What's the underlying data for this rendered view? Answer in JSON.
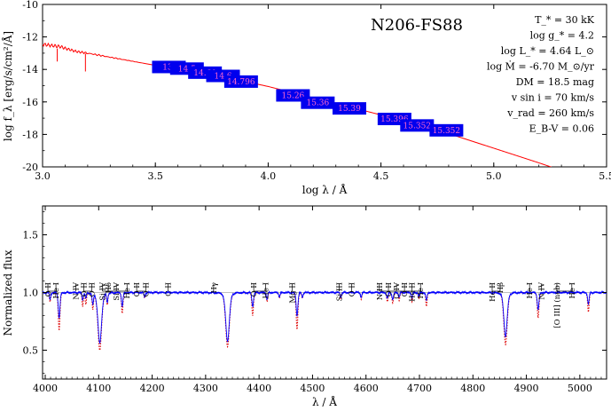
{
  "chart_data": [
    {
      "type": "line",
      "title": "N206-FS88",
      "xlabel": "log λ / Å",
      "ylabel": "log f_λ [erg/s/cm²/Å]",
      "xlim": [
        3.0,
        5.5
      ],
      "ylim": [
        -20,
        -10
      ],
      "xticks": [
        3.0,
        3.5,
        4.0,
        4.5,
        5.0,
        5.5
      ],
      "xtick_labels": [
        "3.0",
        "3.5",
        "4.0",
        "4.5",
        "5.0",
        "5.5"
      ],
      "yticks": [
        -20,
        -18,
        -16,
        -14,
        -12,
        -10
      ],
      "ytick_labels": [
        "-20",
        "-18",
        "-16",
        "-14",
        "-12",
        "-10"
      ],
      "grid": false,
      "colors": {
        "model": "#ff0000",
        "photometry_box": "#0000ee",
        "photometry_label": "#ff66cc"
      },
      "model_sed": {
        "name": "",
        "x": [
          3.0,
          3.05,
          3.08,
          3.1,
          3.15,
          3.2,
          3.3,
          3.4,
          3.5,
          3.6,
          3.7,
          3.8,
          3.9,
          4.0,
          4.1,
          4.2,
          4.3,
          4.4,
          4.5,
          4.6,
          4.7,
          4.8,
          4.9,
          5.0,
          5.1,
          5.2,
          5.4,
          5.5
        ],
        "y": [
          -12.45,
          -12.55,
          -12.6,
          -12.7,
          -12.9,
          -13.0,
          -13.25,
          -13.5,
          -13.75,
          -14.0,
          -14.25,
          -14.5,
          -14.75,
          -15.05,
          -15.4,
          -15.75,
          -16.1,
          -16.45,
          -16.8,
          -17.15,
          -17.55,
          -17.95,
          -18.4,
          -18.85,
          -19.3,
          -19.75,
          -20.7,
          -21.2
        ]
      },
      "photometry": [
        {
          "label": "13.",
          "x": 3.56,
          "y": -13.85
        },
        {
          "label": "14.5",
          "x": 3.64,
          "y": -13.95
        },
        {
          "label": "14.60",
          "x": 3.72,
          "y": -14.2
        },
        {
          "label": "14.6",
          "x": 3.8,
          "y": -14.4
        },
        {
          "label": "14.796",
          "x": 3.88,
          "y": -14.75
        },
        {
          "label": "15.26",
          "x": 4.11,
          "y": -15.6
        },
        {
          "label": "15.36",
          "x": 4.22,
          "y": -16.05
        },
        {
          "label": "15.39",
          "x": 4.36,
          "y": -16.4
        },
        {
          "label": "15.396",
          "x": 4.56,
          "y": -17.05
        },
        {
          "label": "15.352",
          "x": 4.66,
          "y": -17.45
        },
        {
          "label": "15.352",
          "x": 4.79,
          "y": -17.75
        }
      ],
      "parameters": [
        {
          "label": "T_* = 30 kK"
        },
        {
          "label": "log g_* = 4.2"
        },
        {
          "label": "log L_* = 4.64 L_⊙"
        },
        {
          "label": "log Ṁ = -6.70 M_⊙/yr"
        },
        {
          "label": "DM = 18.5 mag"
        },
        {
          "label": "v sin i = 70 km/s"
        },
        {
          "label": "v_rad = 260 km/s"
        },
        {
          "label": "E_B-V = 0.06"
        }
      ]
    },
    {
      "type": "line",
      "xlabel": "λ / Å",
      "ylabel": "Normalized flux",
      "xlim": [
        3995,
        5050
      ],
      "ylim": [
        0.25,
        1.75
      ],
      "xticks": [
        4000,
        4100,
        4200,
        4300,
        4400,
        4500,
        4600,
        4700,
        4800,
        4900,
        5000
      ],
      "xtick_labels": [
        "4000",
        "4100",
        "4200",
        "4300",
        "4400",
        "4500",
        "4600",
        "4700",
        "4800",
        "4900",
        "5000"
      ],
      "yticks": [
        0.5,
        1.0,
        1.5
      ],
      "ytick_labels": [
        "0.5",
        "1.0",
        "1.5"
      ],
      "reference_line": 1.0,
      "colors": {
        "observed": "#0000ff",
        "model": "#dd0000",
        "reference": "#aaaaaa"
      },
      "lines": [
        {
          "name": "",
          "center": 4009,
          "obs_depth": 0.06,
          "model_depth": 0.08,
          "width": 1.2
        },
        {
          "name": "",
          "center": 4026,
          "obs_depth": 0.22,
          "model_depth": 0.33,
          "width": 1.6
        },
        {
          "name": "",
          "center": 4070,
          "obs_depth": 0.06,
          "model_depth": 0.12,
          "width": 1.2
        },
        {
          "name": "",
          "center": 4076,
          "obs_depth": 0.05,
          "model_depth": 0.1,
          "width": 1.2
        },
        {
          "name": "",
          "center": 4089,
          "obs_depth": 0.1,
          "model_depth": 0.14,
          "width": 1.3
        },
        {
          "name": "",
          "center": 4102,
          "obs_depth": 0.44,
          "model_depth": 0.5,
          "width": 3.5
        },
        {
          "name": "",
          "center": 4116,
          "obs_depth": 0.08,
          "model_depth": 0.1,
          "width": 1.2
        },
        {
          "name": "",
          "center": 4144,
          "obs_depth": 0.12,
          "model_depth": 0.18,
          "width": 1.4
        },
        {
          "name": "",
          "center": 4186,
          "obs_depth": 0.04,
          "model_depth": 0.05,
          "width": 1.2
        },
        {
          "name": "",
          "center": 4341,
          "obs_depth": 0.42,
          "model_depth": 0.47,
          "width": 3.5
        },
        {
          "name": "",
          "center": 4388,
          "obs_depth": 0.12,
          "model_depth": 0.2,
          "width": 1.5
        },
        {
          "name": "",
          "center": 4415,
          "obs_depth": 0.06,
          "model_depth": 0.08,
          "width": 1.2
        },
        {
          "name": "",
          "center": 4438,
          "obs_depth": 0.04,
          "model_depth": 0.05,
          "width": 1.2
        },
        {
          "name": "",
          "center": 4471,
          "obs_depth": 0.2,
          "model_depth": 0.32,
          "width": 1.6
        },
        {
          "name": "",
          "center": 4481,
          "obs_depth": 0.04,
          "model_depth": 0.05,
          "width": 1.2
        },
        {
          "name": "",
          "center": 4553,
          "obs_depth": 0.04,
          "model_depth": 0.06,
          "width": 1.2
        },
        {
          "name": "",
          "center": 4591,
          "obs_depth": 0.04,
          "model_depth": 0.06,
          "width": 1.2
        },
        {
          "name": "",
          "center": 4640,
          "obs_depth": 0.05,
          "model_depth": 0.08,
          "width": 1.4
        },
        {
          "name": "",
          "center": 4650,
          "obs_depth": 0.06,
          "model_depth": 0.09,
          "width": 1.4
        },
        {
          "name": "",
          "center": 4662,
          "obs_depth": 0.04,
          "model_depth": 0.07,
          "width": 1.2
        },
        {
          "name": "",
          "center": 4686,
          "obs_depth": 0.05,
          "model_depth": 0.08,
          "width": 1.2
        },
        {
          "name": "",
          "center": 4699,
          "obs_depth": 0.03,
          "model_depth": 0.05,
          "width": 1.2
        },
        {
          "name": "",
          "center": 4713,
          "obs_depth": 0.07,
          "model_depth": 0.12,
          "width": 1.3
        },
        {
          "name": "",
          "center": 4861,
          "obs_depth": 0.38,
          "model_depth": 0.45,
          "width": 3.2
        },
        {
          "name": "",
          "center": 4922,
          "obs_depth": 0.15,
          "model_depth": 0.22,
          "width": 1.6
        },
        {
          "name": "",
          "center": 5016,
          "obs_depth": 0.1,
          "model_depth": 0.17,
          "width": 1.4
        }
      ],
      "line_ids": [
        {
          "label": "O II",
          "x": 4005
        },
        {
          "label": "He I",
          "x": 4020
        },
        {
          "label": "N IV",
          "x": 4057
        },
        {
          "label": "O II",
          "x": 4072
        },
        {
          "label": "O II",
          "x": 4087
        },
        {
          "label": "Si IV",
          "x": 4107
        },
        {
          "label": "Hδ",
          "x": 4118
        },
        {
          "label": "Si IV",
          "x": 4133
        },
        {
          "label": "He I",
          "x": 4153
        },
        {
          "label": "O II",
          "x": 4171
        },
        {
          "label": "O II",
          "x": 4188
        },
        {
          "label": "C II",
          "x": 4230
        },
        {
          "label": "Hγ",
          "x": 4315
        },
        {
          "label": "O II",
          "x": 4390
        },
        {
          "label": "He I",
          "x": 4412
        },
        {
          "label": "Mg II",
          "x": 4462
        },
        {
          "label": "Si III",
          "x": 4550
        },
        {
          "label": "O II",
          "x": 4573
        },
        {
          "label": "N III",
          "x": 4625
        },
        {
          "label": "O II",
          "x": 4642
        },
        {
          "label": "C IV",
          "x": 4657
        },
        {
          "label": "O II",
          "x": 4672
        },
        {
          "label": "He II",
          "x": 4686
        },
        {
          "label": "He I",
          "x": 4702
        },
        {
          "label": "He II",
          "x": 4836
        },
        {
          "label": "Hβ",
          "x": 4851
        },
        {
          "label": "He I",
          "x": 4906
        },
        {
          "label": "N IV",
          "x": 4928
        },
        {
          "label": "[O III] (neb)",
          "x": 4957
        },
        {
          "label": "He I",
          "x": 4985
        }
      ]
    }
  ]
}
